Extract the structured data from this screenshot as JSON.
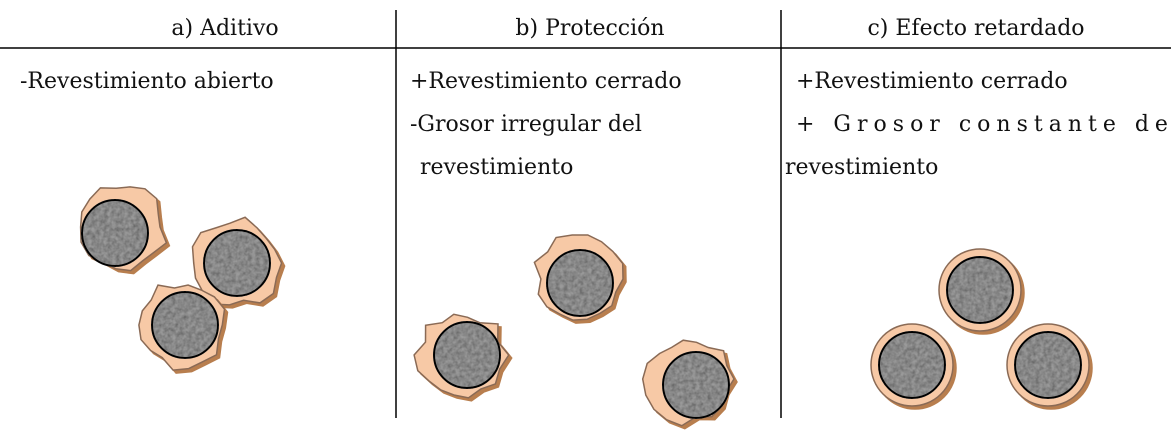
{
  "columns": [
    {
      "header": "a)  Aditivo",
      "lines": [
        "-Revestimiento abierto"
      ]
    },
    {
      "header": "b)  Protección",
      "lines": [
        "+Revestimiento cerrado",
        "-Grosor irregular del",
        "revestimiento"
      ]
    },
    {
      "header": "c) Efecto retardado",
      "lines": [
        "+Revestimiento cerrado",
        "+ Grosor constante del",
        "revestimiento"
      ]
    }
  ]
}
